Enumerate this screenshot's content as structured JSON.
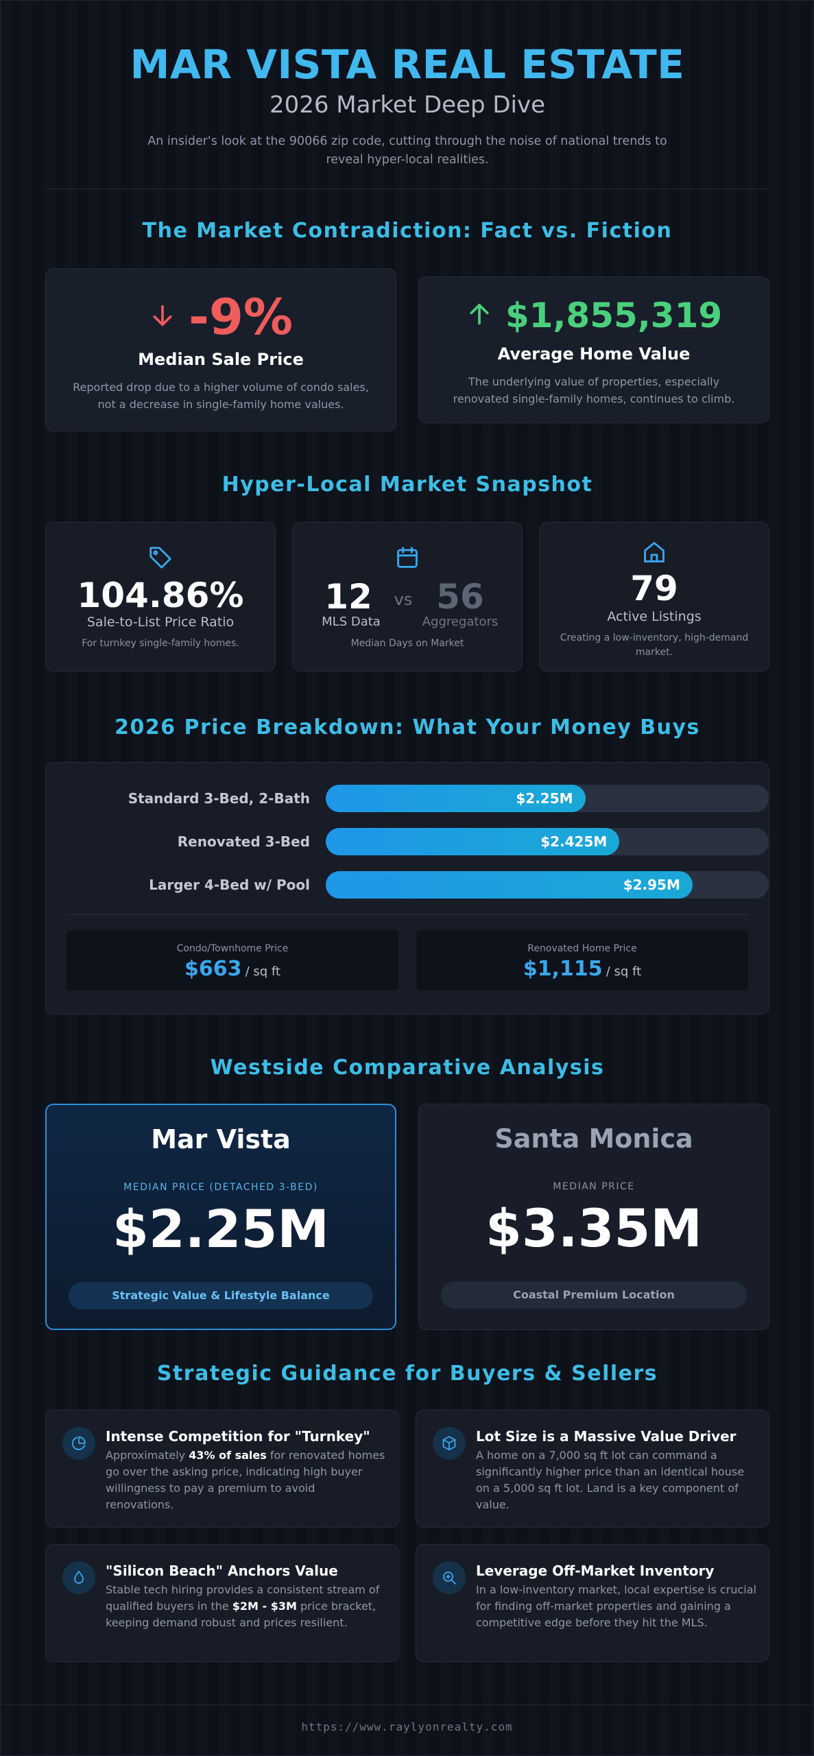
{
  "header": {
    "brand": "MAR VISTA REAL ESTATE",
    "subtitle": "2026 Market Deep Dive",
    "intro": "An insider's look at the 90066 zip code, cutting through the noise of national trends to reveal hyper-local realities."
  },
  "contradiction": {
    "title": "The Market Contradiction: Fact vs. Fiction",
    "left": {
      "icon": "arrow-down-icon",
      "value": "-9%",
      "heading": "Median Sale Price",
      "text": "Reported drop due to a higher volume of condo sales, not a decrease in single-family home values.",
      "color": "#ef5c5c"
    },
    "right": {
      "icon": "arrow-up-icon",
      "value": "$1,855,319",
      "heading": "Average Home Value",
      "text": "The underlying value of properties, especially renovated single-family homes, continues to climb.",
      "color": "#4ad07c"
    }
  },
  "snapshot": {
    "title": "Hyper-Local Market Snapshot",
    "ratio": {
      "icon": "tag-icon",
      "value": "104.86%",
      "label": "Sale-to-List Price Ratio",
      "note": "For turnkey single-family homes."
    },
    "days": {
      "icon": "calendar-icon",
      "mls_value": "12",
      "mls_label": "MLS Data",
      "vs": "vs",
      "agg_value": "56",
      "agg_label": "Aggregators",
      "note": "Median Days on Market"
    },
    "listings": {
      "icon": "home-icon",
      "value": "79",
      "label": "Active Listings",
      "note": "Creating a low-inventory, high-demand market."
    }
  },
  "breakdown": {
    "title": "2026 Price Breakdown: What Your Money Buys",
    "bars": [
      {
        "label": "Standard 3-Bed, 2-Bath",
        "value_text": "$2.25M",
        "fill": 0.586
      },
      {
        "label": "Renovated 3-Bed",
        "value_text": "$2.425M",
        "fill": 0.663
      },
      {
        "label": "Larger 4-Bed w/ Pool",
        "value_text": "$2.95M",
        "fill": 0.828
      }
    ],
    "per_sqft": [
      {
        "label": "Condo/Townhome Price",
        "value": "$663",
        "unit": "/ sq ft"
      },
      {
        "label": "Renovated Home Price",
        "value": "$1,115",
        "unit": "/ sq ft"
      }
    ],
    "bar_color_start": "#1e97e8",
    "bar_color_end": "#1aa8d6"
  },
  "comparative": {
    "title": "Westside Comparative Analysis",
    "mar_vista": {
      "name": "Mar Vista",
      "caption": "MEDIAN PRICE (DETACHED 3-BED)",
      "price": "$2.25M",
      "tag": "Strategic Value & Lifestyle Balance"
    },
    "santa_monica": {
      "name": "Santa Monica",
      "caption": "MEDIAN PRICE",
      "price": "$3.35M",
      "tag": "Coastal Premium Location"
    }
  },
  "guidance": {
    "title": "Strategic Guidance for Buyers & Sellers",
    "items": [
      {
        "icon": "pie-chart-icon",
        "title": "Intense Competition for \"Turnkey\"",
        "pre": "Approximately ",
        "bold": "43% of sales",
        "post": " for renovated homes go over the asking price, indicating high buyer willingness to pay a premium to avoid renovations."
      },
      {
        "icon": "cube-icon",
        "title": "Lot Size is a Massive Value Driver",
        "text": "A home on a 7,000 sq ft lot can command a significantly higher price than an identical house on a 5,000 sq ft lot. Land is a key component of value."
      },
      {
        "icon": "droplet-icon",
        "title": "\"Silicon Beach\" Anchors Value",
        "pre": "Stable tech hiring provides a consistent stream of qualified buyers in the ",
        "bold": "$2M - $3M",
        "post": " price bracket, keeping demand robust and prices resilient."
      },
      {
        "icon": "search-icon",
        "title": "Leverage Off-Market Inventory",
        "text": "In a low-inventory market, local expertise is crucial for finding off-market properties and gaining a competitive edge before they hit the MLS."
      }
    ]
  },
  "footer": {
    "url": "https://www.raylyonrealty.com"
  }
}
